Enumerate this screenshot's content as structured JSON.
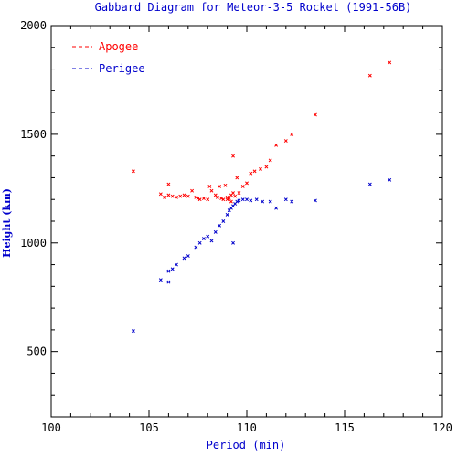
{
  "chart_data": {
    "type": "scatter",
    "title": "Gabbard Diagram for Meteor-3-5 Rocket (1991-56B)",
    "xlabel": "Period (min)",
    "ylabel": "Height (km)",
    "xlim": [
      100,
      120
    ],
    "ylim": [
      200,
      2000
    ],
    "x_ticks": [
      100,
      105,
      110,
      115,
      120
    ],
    "y_ticks": [
      500,
      1000,
      1500,
      2000
    ],
    "x_minor_step": 1,
    "y_minor_step": 100,
    "legend_position": "top-left",
    "series": [
      {
        "name": "Apogee",
        "color": "#ff0000",
        "points": [
          [
            104.2,
            1330
          ],
          [
            105.6,
            1225
          ],
          [
            105.8,
            1210
          ],
          [
            106.0,
            1270
          ],
          [
            106.0,
            1220
          ],
          [
            106.2,
            1215
          ],
          [
            106.4,
            1210
          ],
          [
            106.6,
            1215
          ],
          [
            106.8,
            1220
          ],
          [
            107.0,
            1215
          ],
          [
            107.2,
            1240
          ],
          [
            107.4,
            1210
          ],
          [
            107.5,
            1205
          ],
          [
            107.6,
            1200
          ],
          [
            107.8,
            1205
          ],
          [
            108.0,
            1200
          ],
          [
            108.1,
            1260
          ],
          [
            108.2,
            1240
          ],
          [
            108.4,
            1220
          ],
          [
            108.5,
            1210
          ],
          [
            108.6,
            1260
          ],
          [
            108.7,
            1205
          ],
          [
            108.8,
            1200
          ],
          [
            108.9,
            1265
          ],
          [
            109.0,
            1210
          ],
          [
            109.0,
            1200
          ],
          [
            109.1,
            1205
          ],
          [
            109.2,
            1220
          ],
          [
            109.2,
            1190
          ],
          [
            109.3,
            1400
          ],
          [
            109.3,
            1230
          ],
          [
            109.4,
            1215
          ],
          [
            109.5,
            1300
          ],
          [
            109.6,
            1230
          ],
          [
            109.8,
            1260
          ],
          [
            110.0,
            1275
          ],
          [
            110.2,
            1320
          ],
          [
            110.4,
            1330
          ],
          [
            110.7,
            1340
          ],
          [
            111.0,
            1350
          ],
          [
            111.2,
            1380
          ],
          [
            111.5,
            1450
          ],
          [
            112.0,
            1470
          ],
          [
            112.3,
            1500
          ],
          [
            113.5,
            1590
          ],
          [
            116.3,
            1770
          ],
          [
            117.3,
            1830
          ]
        ]
      },
      {
        "name": "Perigee",
        "color": "#0000cc",
        "points": [
          [
            104.2,
            595
          ],
          [
            105.6,
            830
          ],
          [
            106.0,
            820
          ],
          [
            106.0,
            870
          ],
          [
            106.2,
            880
          ],
          [
            106.4,
            900
          ],
          [
            106.8,
            930
          ],
          [
            107.0,
            940
          ],
          [
            107.4,
            980
          ],
          [
            107.6,
            1000
          ],
          [
            107.8,
            1020
          ],
          [
            108.0,
            1030
          ],
          [
            108.2,
            1010
          ],
          [
            108.4,
            1050
          ],
          [
            108.6,
            1080
          ],
          [
            108.8,
            1100
          ],
          [
            109.0,
            1130
          ],
          [
            109.1,
            1150
          ],
          [
            109.2,
            1160
          ],
          [
            109.3,
            1170
          ],
          [
            109.3,
            1000
          ],
          [
            109.4,
            1180
          ],
          [
            109.5,
            1190
          ],
          [
            109.6,
            1195
          ],
          [
            109.8,
            1200
          ],
          [
            110.0,
            1200
          ],
          [
            110.2,
            1195
          ],
          [
            110.5,
            1200
          ],
          [
            110.8,
            1190
          ],
          [
            111.2,
            1190
          ],
          [
            111.5,
            1160
          ],
          [
            112.0,
            1200
          ],
          [
            112.3,
            1190
          ],
          [
            113.5,
            1195
          ],
          [
            116.3,
            1270
          ],
          [
            117.3,
            1290
          ]
        ]
      }
    ]
  }
}
